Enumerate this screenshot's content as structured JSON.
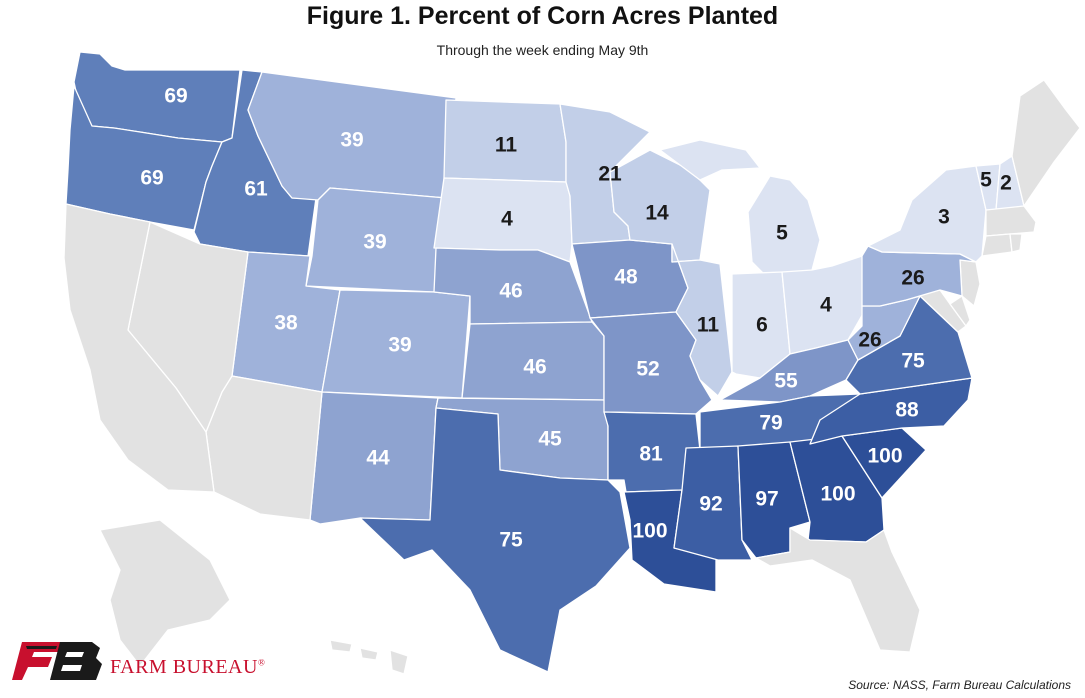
{
  "header": {
    "title": "Figure 1. Percent of Corn Acres Planted",
    "subtitle": "Through the week ending May 9th"
  },
  "footer": {
    "logo_text": "FARM BUREAU",
    "logo_mark": "®",
    "source": "Source: NASS, Farm Bureau Calculations"
  },
  "colors": {
    "no_data": "#e2e2e2",
    "scale": [
      "#dce3f2",
      "#c2cfe8",
      "#9fb2da",
      "#8ea3d0",
      "#7e95c8",
      "#5f7fba",
      "#4c6dae",
      "#3c5ea4",
      "#2d4f98"
    ],
    "border": "#ffffff",
    "dark_text": "#1a1a1a",
    "light_text": "#ffffff"
  },
  "map_data": {
    "metric": "Percent of Corn Acres Planted",
    "states": [
      {
        "state": "WA",
        "value": "69"
      },
      {
        "state": "OR",
        "value": "69"
      },
      {
        "state": "ID",
        "value": "61"
      },
      {
        "state": "MT",
        "value": "39"
      },
      {
        "state": "WY",
        "value": "39"
      },
      {
        "state": "UT",
        "value": "38"
      },
      {
        "state": "CO",
        "value": "39"
      },
      {
        "state": "NM",
        "value": "44"
      },
      {
        "state": "ND",
        "value": "11"
      },
      {
        "state": "SD",
        "value": "4"
      },
      {
        "state": "NE",
        "value": "46"
      },
      {
        "state": "KS",
        "value": "46"
      },
      {
        "state": "OK",
        "value": "45"
      },
      {
        "state": "TX",
        "value": "75"
      },
      {
        "state": "MN",
        "value": "21"
      },
      {
        "state": "IA",
        "value": "48"
      },
      {
        "state": "MO",
        "value": "52"
      },
      {
        "state": "AR",
        "value": "81"
      },
      {
        "state": "LA",
        "value": "100"
      },
      {
        "state": "WI",
        "value": "14"
      },
      {
        "state": "IL",
        "value": "11"
      },
      {
        "state": "MI",
        "value": "5"
      },
      {
        "state": "IN",
        "value": "6"
      },
      {
        "state": "OH",
        "value": "4"
      },
      {
        "state": "KY",
        "value": "55"
      },
      {
        "state": "TN",
        "value": "79"
      },
      {
        "state": "MS",
        "value": "92"
      },
      {
        "state": "AL",
        "value": "97"
      },
      {
        "state": "GA",
        "value": "100"
      },
      {
        "state": "SC",
        "value": "100"
      },
      {
        "state": "NC",
        "value": "88"
      },
      {
        "state": "VA",
        "value": "75"
      },
      {
        "state": "WV",
        "value": "26"
      },
      {
        "state": "PA",
        "value": "26"
      },
      {
        "state": "NY",
        "value": "3"
      },
      {
        "state": "VT",
        "value": "5"
      },
      {
        "state": "NH",
        "value": "2"
      }
    ]
  }
}
